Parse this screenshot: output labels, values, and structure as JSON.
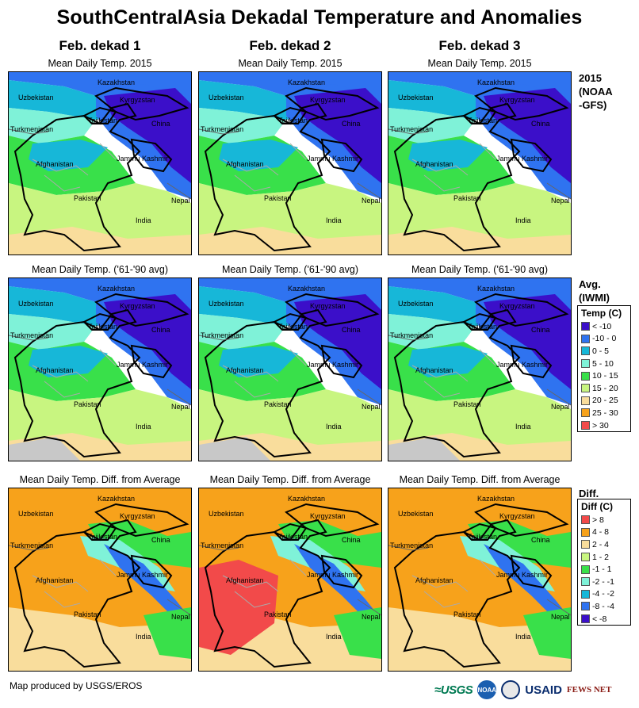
{
  "title": "SouthCentralAsia Dekadal Temperature and Anomalies",
  "columns": [
    {
      "header": "Feb. dekad 1"
    },
    {
      "header": "Feb. dekad 2"
    },
    {
      "header": "Feb. dekad 3"
    }
  ],
  "rows": [
    {
      "panel_title": "Mean Daily Temp. 2015",
      "side_label_1": "2015",
      "side_label_2": "(NOAA",
      "side_label_3": "-GFS)"
    },
    {
      "panel_title": "Mean Daily Temp. ('61-'90 avg)",
      "side_label_1": "Avg.",
      "side_label_2": "(IWMI)"
    },
    {
      "panel_title": "Mean Daily Temp. Diff. from Average",
      "side_label_1": "Diff."
    }
  ],
  "map_labels": {
    "kazakhstan": "Kazakhstan",
    "uzbekistan": "Uzbekistan",
    "kyrgyzstan": "Kyrgyzstan",
    "turkmenistan": "Turkmenistan",
    "tajikistan": "Tajikistan",
    "china": "China",
    "afghanistan": "Afghanistan",
    "jammu_kashmir": "Jammu Kashmir",
    "pakistan": "Pakistan",
    "nepal": "Nepal",
    "india": "India"
  },
  "temp_legend": {
    "title": "Temp (C)",
    "items": [
      {
        "label": "< -10",
        "color": "#3b0fc9"
      },
      {
        "label": "-10 - 0",
        "color": "#2f73f0"
      },
      {
        "label": "0 - 5",
        "color": "#17b7d8"
      },
      {
        "label": "5 - 10",
        "color": "#7ff2d8"
      },
      {
        "label": "10 - 15",
        "color": "#39e04a"
      },
      {
        "label": "15 - 20",
        "color": "#c8f580"
      },
      {
        "label": "20 - 25",
        "color": "#f9dd9c"
      },
      {
        "label": "25 - 30",
        "color": "#f7a21b"
      },
      {
        "label": "> 30",
        "color": "#f24a4a"
      }
    ]
  },
  "diff_legend": {
    "title": "Diff (C)",
    "items": [
      {
        "label": "> 8",
        "color": "#f24a4a"
      },
      {
        "label": "4 - 8",
        "color": "#f7a21b"
      },
      {
        "label": "2 - 4",
        "color": "#f9dd9c"
      },
      {
        "label": "1 - 2",
        "color": "#c8f580"
      },
      {
        "label": "-1 - 1",
        "color": "#39e04a"
      },
      {
        "label": "-2 - -1",
        "color": "#7ff2d8"
      },
      {
        "label": "-4 - -2",
        "color": "#17b7d8"
      },
      {
        "label": "-8 - -4",
        "color": "#2f73f0"
      },
      {
        "label": "< -8",
        "color": "#3b0fc9"
      }
    ]
  },
  "credit": "Map produced by USGS/EROS",
  "logos": {
    "usgs": "≈USGS",
    "noaa": "NOAA",
    "usaid": "USAID",
    "fews": "FEWS NET"
  }
}
